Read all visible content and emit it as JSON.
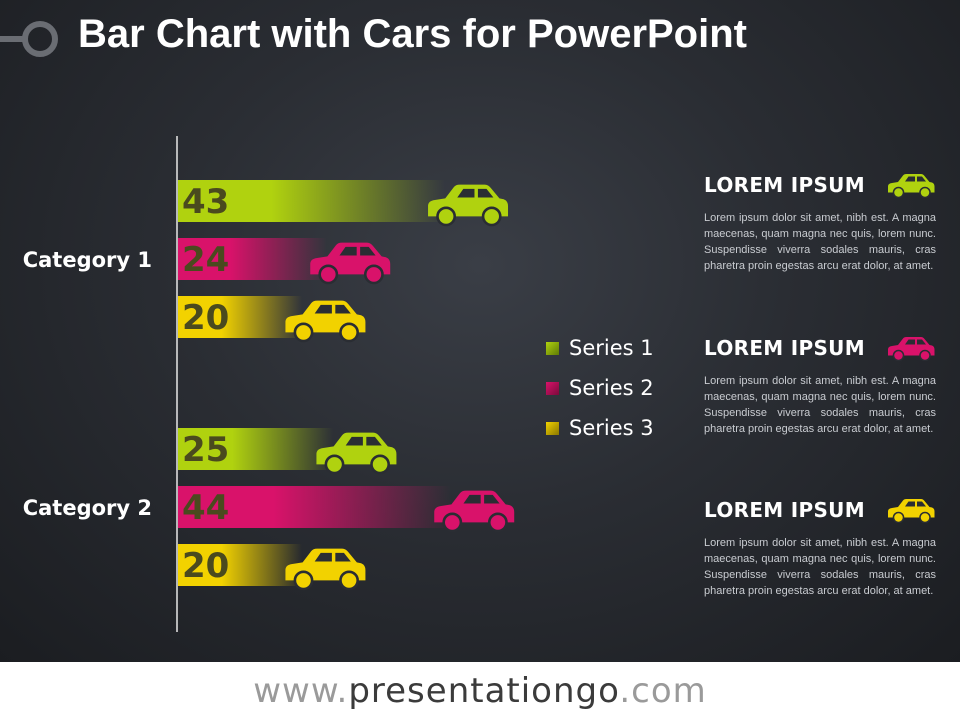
{
  "title": "Bar Chart with Cars for PowerPoint",
  "colors": {
    "series1": "#b0d20f",
    "series2": "#d9126a",
    "series3": "#f2d200",
    "value_text": "#4a4a1e"
  },
  "chart_data": {
    "type": "bar",
    "orientation": "horizontal",
    "categories": [
      "Category 1",
      "Category 2"
    ],
    "series": [
      {
        "name": "Series 1",
        "values": [
          43,
          25
        ]
      },
      {
        "name": "Series 2",
        "values": [
          24,
          44
        ]
      },
      {
        "name": "Series 3",
        "values": [
          20,
          20
        ]
      }
    ],
    "xlim": [
      0,
      50
    ],
    "grid": false,
    "legend": "right"
  },
  "panels": [
    {
      "title": "LOREM IPSUM",
      "text": "Lorem ipsum dolor sit amet, nibh est. A magna maecenas, quam magna nec quis, lorem nunc. Suspendisse viverra sodales mauris, cras pharetra proin egestas arcu erat dolor, at amet.",
      "icon": "car-icon"
    },
    {
      "title": "LOREM IPSUM",
      "text": "Lorem ipsum dolor sit amet, nibh est. A magna maecenas, quam magna nec quis, lorem nunc. Suspendisse viverra sodales mauris, cras pharetra proin egestas arcu erat dolor, at amet.",
      "icon": "car-icon"
    },
    {
      "title": "LOREM IPSUM",
      "text": "Lorem ipsum dolor sit amet, nibh est. A magna maecenas, quam magna nec quis, lorem nunc. Suspendisse viverra sodales mauris, cras pharetra proin egestas arcu erat dolor, at amet.",
      "icon": "car-icon"
    }
  ],
  "footer": {
    "prefix": "www.",
    "brand": "presentationgo",
    "suffix": ".com"
  }
}
